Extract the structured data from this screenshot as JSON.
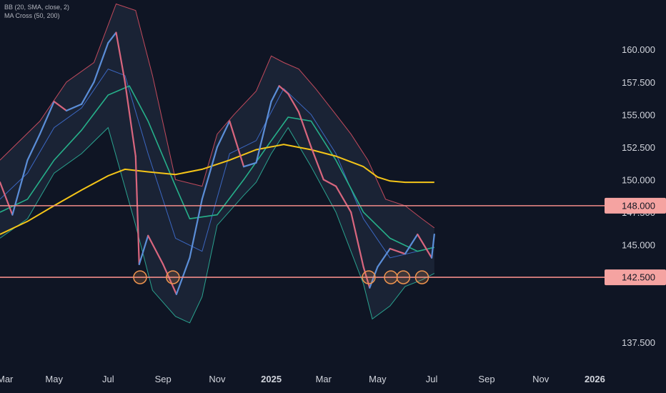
{
  "indicators": {
    "bb_label": "BB (20, SMA, close, 2)",
    "ma_label": "MA Cross (50, 200)"
  },
  "colors": {
    "background": "#0f1524",
    "candle_up": "#5b8ed8",
    "candle_down": "#d9667e",
    "bb_upper": "#c24a5c",
    "bb_lower": "#2aa38f",
    "bb_basis": "#3f6fd1",
    "bb_fill": "#1c2638",
    "ma50": "#26b08a",
    "ma200": "#f5c518",
    "level_line": "#f28b89",
    "level_badge": "#f5a3a1",
    "marker": "#f0954f",
    "axis_text": "#d1d4dc"
  },
  "chart_data": {
    "type": "line",
    "y_axis": {
      "ticks": [
        "160.000",
        "157.500",
        "155.000",
        "152.500",
        "150.000",
        "147.500",
        "145.000",
        "137.500"
      ],
      "tick_values": [
        160,
        157.5,
        155,
        152.5,
        150,
        147.5,
        145,
        137.5
      ],
      "range": [
        135.7,
        163.8
      ]
    },
    "x_axis": {
      "labels": [
        "Mar",
        "May",
        "Jul",
        "Sep",
        "Nov",
        "2025",
        "Mar",
        "May",
        "Jul",
        "Sep",
        "Nov",
        "2026"
      ],
      "label_dates": [
        "2024-03-01",
        "2024-05-01",
        "2024-07-01",
        "2024-09-01",
        "2024-11-01",
        "2025-01-01",
        "2025-03-01",
        "2025-05-01",
        "2025-07-01",
        "2025-09-01",
        "2025-11-01",
        "2026-01-01"
      ],
      "range": [
        "2024-03-01",
        "2026-01-12"
      ]
    },
    "price_series": {
      "x": [
        "2024-03-01",
        "2024-03-15",
        "2024-04-01",
        "2024-04-15",
        "2024-05-01",
        "2024-05-15",
        "2024-06-01",
        "2024-06-15",
        "2024-07-01",
        "2024-07-10",
        "2024-07-20",
        "2024-08-01",
        "2024-08-05",
        "2024-08-15",
        "2024-09-01",
        "2024-09-16",
        "2024-10-01",
        "2024-10-15",
        "2024-11-01",
        "2024-11-15",
        "2024-12-01",
        "2024-12-15",
        "2025-01-01",
        "2025-01-10",
        "2025-01-20",
        "2025-02-01",
        "2025-02-15",
        "2025-03-01",
        "2025-03-15",
        "2025-04-01",
        "2025-04-15",
        "2025-04-22",
        "2025-05-01",
        "2025-05-15",
        "2025-06-01",
        "2025-06-15",
        "2025-07-01",
        "2025-07-04"
      ],
      "y": [
        149.8,
        147.3,
        151.5,
        153.5,
        156.0,
        155.3,
        155.8,
        157.5,
        160.5,
        161.3,
        157.5,
        151.8,
        143.5,
        145.7,
        143.5,
        141.2,
        144.0,
        148.5,
        152.5,
        154.5,
        151.0,
        151.3,
        156.0,
        157.2,
        156.6,
        155.2,
        152.5,
        150.0,
        149.5,
        147.5,
        143.3,
        141.7,
        143.3,
        144.7,
        144.3,
        145.8,
        144.0,
        145.8
      ]
    },
    "bb_upper": {
      "x": [
        "2024-03-01",
        "2024-04-15",
        "2024-05-15",
        "2024-06-15",
        "2024-07-10",
        "2024-08-01",
        "2024-08-20",
        "2024-09-15",
        "2024-10-15",
        "2024-11-01",
        "2024-11-20",
        "2024-12-15",
        "2025-01-01",
        "2025-01-15",
        "2025-02-01",
        "2025-02-20",
        "2025-03-15",
        "2025-04-01",
        "2025-04-20",
        "2025-05-10",
        "2025-06-01",
        "2025-06-20",
        "2025-07-04"
      ],
      "y": [
        151.5,
        154.5,
        157.5,
        159.0,
        163.5,
        163.0,
        158.0,
        150.0,
        149.5,
        153.5,
        155.0,
        156.8,
        159.5,
        159.0,
        158.5,
        157.0,
        155.0,
        153.5,
        151.5,
        148.5,
        148.0,
        147.0,
        146.3
      ]
    },
    "bb_lower": {
      "x": [
        "2024-03-01",
        "2024-04-01",
        "2024-05-01",
        "2024-06-01",
        "2024-07-01",
        "2024-08-01",
        "2024-08-20",
        "2024-09-15",
        "2024-10-01",
        "2024-10-15",
        "2024-11-01",
        "2024-12-01",
        "2024-12-15",
        "2025-01-01",
        "2025-01-20",
        "2025-02-15",
        "2025-03-15",
        "2025-04-15",
        "2025-04-25",
        "2025-05-15",
        "2025-06-01",
        "2025-06-20",
        "2025-07-04"
      ],
      "y": [
        145.5,
        147.0,
        150.5,
        152.0,
        154.0,
        146.5,
        141.5,
        139.5,
        139.0,
        141.0,
        146.5,
        148.8,
        149.8,
        152.0,
        154.0,
        151.0,
        147.5,
        142.0,
        139.3,
        140.3,
        141.8,
        142.3,
        142.8
      ]
    },
    "bb_basis": {
      "x": [
        "2024-03-01",
        "2024-04-01",
        "2024-05-01",
        "2024-06-01",
        "2024-07-01",
        "2024-07-20",
        "2024-08-15",
        "2024-09-15",
        "2024-10-15",
        "2024-11-15",
        "2024-12-15",
        "2025-01-15",
        "2025-02-15",
        "2025-03-15",
        "2025-04-15",
        "2025-05-15",
        "2025-06-15",
        "2025-07-04"
      ],
      "y": [
        148.5,
        150.5,
        154.0,
        155.5,
        158.5,
        158.0,
        152.0,
        145.5,
        144.5,
        152.0,
        153.0,
        157.0,
        155.0,
        152.0,
        147.0,
        144.0,
        144.5,
        144.8
      ]
    },
    "ma50": {
      "x": [
        "2024-03-01",
        "2024-04-01",
        "2024-05-01",
        "2024-06-01",
        "2024-07-01",
        "2024-07-25",
        "2024-08-15",
        "2024-09-15",
        "2024-10-01",
        "2024-11-01",
        "2024-12-01",
        "2025-01-01",
        "2025-01-20",
        "2025-02-15",
        "2025-03-15",
        "2025-04-15",
        "2025-05-15",
        "2025-06-15",
        "2025-07-04"
      ],
      "y": [
        147.5,
        148.5,
        151.5,
        153.8,
        156.5,
        157.2,
        154.5,
        149.5,
        147.0,
        147.3,
        150.0,
        153.0,
        154.8,
        154.5,
        151.5,
        147.5,
        145.5,
        144.5,
        144.8
      ]
    },
    "ma200": {
      "x": [
        "2024-03-01",
        "2024-04-01",
        "2024-05-01",
        "2024-06-01",
        "2024-07-01",
        "2024-07-20",
        "2024-08-15",
        "2024-09-15",
        "2024-10-15",
        "2024-11-15",
        "2024-12-15",
        "2025-01-15",
        "2025-02-15",
        "2025-03-15",
        "2025-04-15",
        "2025-05-01",
        "2025-05-15",
        "2025-06-01",
        "2025-06-20",
        "2025-07-04"
      ],
      "y": [
        145.8,
        146.8,
        148.0,
        149.2,
        150.3,
        150.8,
        150.6,
        150.4,
        150.8,
        151.5,
        152.3,
        152.7,
        152.3,
        151.8,
        151.0,
        150.2,
        149.9,
        149.8,
        149.8,
        149.8
      ]
    },
    "horizontal_levels": [
      {
        "value": 148.0,
        "label": "148.000"
      },
      {
        "value": 142.5,
        "label": "142.500"
      }
    ],
    "support_touches": {
      "x": [
        "2024-08-06",
        "2024-09-12",
        "2025-04-21",
        "2025-05-16",
        "2025-05-30",
        "2025-06-20"
      ],
      "y": [
        142.5,
        142.5,
        142.5,
        142.5,
        142.5,
        142.5
      ]
    }
  }
}
